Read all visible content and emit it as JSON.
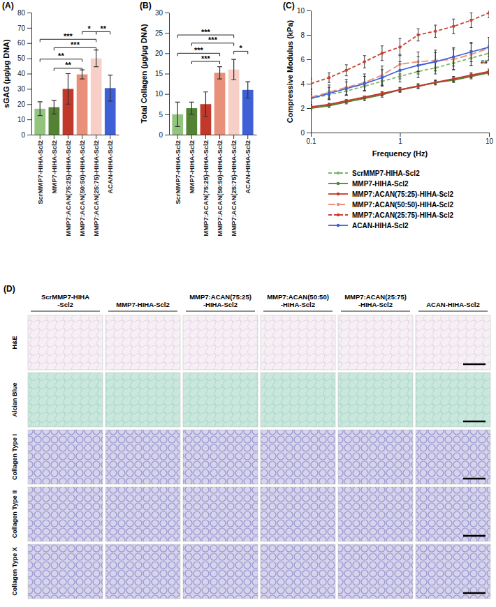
{
  "chart_data": [
    {
      "type": "bar",
      "title": "(A)",
      "y_label": "sGAG (μg/μg DNA)",
      "categories": [
        "ScrMMP7-HIHA-Scl2",
        "MMP7-HIHA-Scl2",
        "MMP7:ACAN(75:25)-HIHA-Scl2",
        "MMP7:ACAN(50:50)-HIHA-Scl2",
        "MMP7:ACAN(25:75)-HIHA-Scl2",
        "ACAN-HIHA-Scl2"
      ],
      "values": [
        17,
        18,
        30,
        39.5,
        50,
        30.5
      ],
      "errors": [
        4.5,
        4.5,
        10,
        3,
        5.5,
        8.5
      ],
      "colors": [
        "#93c47d",
        "#548235",
        "#c0392b",
        "#e8907a",
        "#f7cfc6",
        "#3e5fd6"
      ],
      "ylim": [
        0,
        80
      ],
      "yticks": [
        0,
        10,
        20,
        30,
        40,
        50,
        60,
        70,
        80
      ],
      "grid": false,
      "annotations": [
        {
          "text": "**",
          "x": [
            1,
            3
          ],
          "y": 43.5
        },
        {
          "text": "**",
          "x": [
            0,
            3
          ],
          "y": 49.5
        },
        {
          "text": "***",
          "x": [
            1,
            4
          ],
          "y": 57
        },
        {
          "text": "***",
          "x": [
            0,
            4
          ],
          "y": 62.5
        },
        {
          "text": "*",
          "x": [
            3,
            4
          ],
          "y": 67.5
        },
        {
          "text": "**",
          "x": [
            4,
            5
          ],
          "y": 67.5
        }
      ]
    },
    {
      "type": "bar",
      "title": "(B)",
      "y_label": "Total Collagen (μg/μg DNA)",
      "categories": [
        "ScrMMP7-HIHA-Scl2",
        "MMP7-HIHA-Scl2",
        "MMP7:ACAN(75:25)-HIHA-Scl2",
        "MMP7:ACAN(50:50)-HIHA-Scl2",
        "MMP7:ACAN(25:75)-HIHA-Scl2",
        "ACAN-HIHA-Scl2"
      ],
      "values": [
        5,
        6.5,
        7.5,
        15.2,
        16,
        11
      ],
      "errors": [
        3,
        1.5,
        3,
        1.5,
        2.5,
        2
      ],
      "colors": [
        "#93c47d",
        "#548235",
        "#c0392b",
        "#e8907a",
        "#f7cfc6",
        "#3e5fd6"
      ],
      "ylim": [
        0,
        30
      ],
      "yticks": [
        0,
        5,
        10,
        15,
        20,
        25,
        30
      ],
      "grid": false,
      "annotations": [
        {
          "text": "***",
          "x": [
            1,
            3
          ],
          "y": 18
        },
        {
          "text": "***",
          "x": [
            0,
            3
          ],
          "y": 20
        },
        {
          "text": "***",
          "x": [
            1,
            4
          ],
          "y": 22.5
        },
        {
          "text": "***",
          "x": [
            0,
            4
          ],
          "y": 24.5
        },
        {
          "text": "*",
          "x": [
            4,
            5
          ],
          "y": 20.5
        }
      ]
    },
    {
      "type": "line",
      "title": "(C)",
      "x_label": "Frequency (Hz)",
      "y_label": "Compressive Modulus (kPa)",
      "log": "x",
      "grid": false,
      "legend": "bottom right",
      "x": [
        0.1,
        0.16,
        0.25,
        0.4,
        0.63,
        1,
        1.6,
        2.5,
        4,
        6.3,
        10
      ],
      "xlim": [
        0.1,
        10
      ],
      "xticks": [
        0.1,
        1,
        10
      ],
      "ylim": [
        0,
        10
      ],
      "yticks": [
        0,
        2,
        4,
        6,
        8,
        10
      ],
      "series": [
        {
          "name": "ScrMMP7-HIHA-Scl2",
          "color": "#7fb56a",
          "line_style": "dashed",
          "marker": "circle",
          "values": [
            2.8,
            3.1,
            3.4,
            3.8,
            4.2,
            4.6,
            5.0,
            5.3,
            5.7,
            6.1,
            6.5
          ],
          "errors": [
            0.3,
            0.3,
            0.3,
            0.35,
            0.4,
            0.45,
            0.5,
            0.5,
            0.55,
            0.6,
            0.6
          ]
        },
        {
          "name": "MMP7-HIHA-Scl2",
          "color": "#548235",
          "line_style": "solid",
          "marker": "circle",
          "values": [
            2.0,
            2.2,
            2.5,
            2.8,
            3.1,
            3.5,
            3.8,
            4.1,
            4.3,
            4.6,
            4.9
          ],
          "errors": [
            0.15,
            0.15,
            0.15,
            0.2,
            0.2,
            0.2,
            0.2,
            0.2,
            0.2,
            0.2,
            0.2
          ]
        },
        {
          "name": "MMP7:ACAN(75:25)-HIHA-Scl2",
          "color": "#c0392b",
          "line_style": "solid",
          "marker": "circle",
          "values": [
            2.1,
            2.3,
            2.6,
            2.9,
            3.2,
            3.5,
            3.8,
            4.1,
            4.4,
            4.7,
            5.0
          ],
          "errors": [
            0.1,
            0.1,
            0.1,
            0.1,
            0.15,
            0.15,
            0.15,
            0.15,
            0.2,
            0.2,
            0.2
          ]
        },
        {
          "name": "MMP7:ACAN(50:50)-HIHA-Scl2",
          "color": "#e8907a",
          "line_style": "longdash",
          "marker": "circle",
          "values": [
            2.9,
            3.3,
            3.7,
            4.1,
            4.7,
            5.6,
            5.8,
            5.9,
            6.0,
            6.4,
            6.9
          ],
          "errors": [
            0.6,
            0.6,
            0.65,
            0.7,
            0.75,
            0.8,
            0.8,
            0.85,
            0.85,
            0.9,
            0.9
          ]
        },
        {
          "name": "MMP7:ACAN(25:75)-HIHA-Scl2",
          "color": "#c8412e",
          "line_style": "dashed",
          "marker": "circle",
          "values": [
            4.0,
            4.5,
            5.1,
            5.8,
            6.5,
            7.0,
            8.0,
            8.3,
            8.7,
            9.2,
            9.8
          ],
          "errors": [
            0.4,
            0.4,
            0.45,
            0.5,
            0.6,
            0.7,
            0.5,
            0.5,
            0.6,
            0.6,
            0.4
          ]
        },
        {
          "name": "ACAN-HIHA-Scl2",
          "color": "#3e5fd6",
          "line_style": "solid",
          "marker": "circle",
          "values": [
            2.8,
            3.2,
            3.6,
            4.0,
            4.5,
            5.1,
            5.5,
            5.8,
            6.2,
            6.6,
            7.0
          ],
          "errors": [
            0.5,
            0.5,
            0.55,
            0.6,
            0.65,
            0.7,
            0.7,
            0.75,
            0.75,
            0.8,
            0.8
          ]
        }
      ],
      "annotations": [
        {
          "text": "##",
          "x": 10,
          "y": 5.6
        }
      ]
    }
  ],
  "image_grid": {
    "title": "(D)",
    "columns": [
      [
        "ScrMMP7-HIHA",
        "-Scl2"
      ],
      [
        "MMP7-HIHA-Scl2"
      ],
      [
        "MMP7:ACAN(75:25)",
        "-HIHA-Scl2"
      ],
      [
        "MMP7:ACAN(50:50)",
        "-HIHA-Scl2"
      ],
      [
        "MMP7:ACAN(25:75)",
        "-HIHA-Scl2"
      ],
      [
        "ACAN-HIHA-Scl2"
      ]
    ],
    "rows": [
      "H&E",
      "Alcian Blue",
      "Collagen Type I",
      "Collagen Type II",
      "Collagen Type X"
    ]
  }
}
